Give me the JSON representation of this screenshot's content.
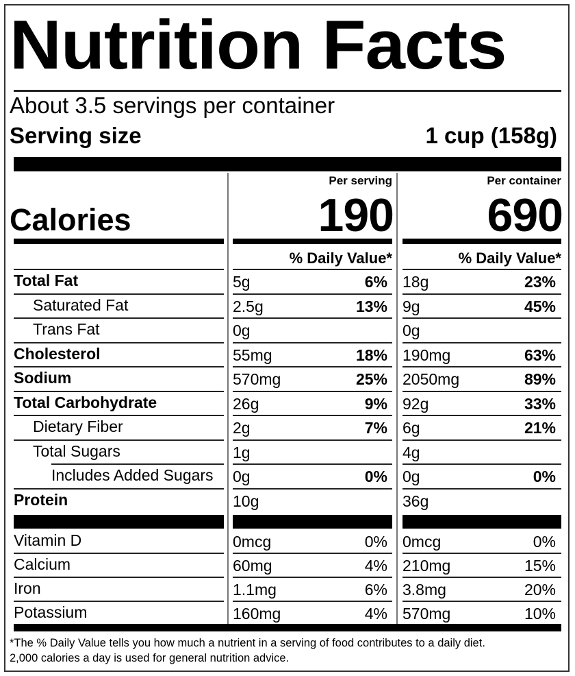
{
  "header": {
    "title": "Nutrition Facts",
    "servings_per_container": "About 3.5 servings per container",
    "serving_size_label": "Serving size",
    "serving_size_value": "1 cup (158g)"
  },
  "columns": [
    {
      "heading": "Per serving",
      "calories": "190",
      "dv_heading": "% Daily Value*"
    },
    {
      "heading": "Per container",
      "calories": "690",
      "dv_heading": "% Daily Value*"
    }
  ],
  "calories_label": "Calories",
  "nutrients": [
    {
      "label": "Total Fat",
      "bold": true,
      "indent": 0,
      "serving": {
        "amount": "5g",
        "dv": "6%"
      },
      "container": {
        "amount": "18g",
        "dv": "23%"
      }
    },
    {
      "label": "Saturated Fat",
      "bold": false,
      "indent": 1,
      "serving": {
        "amount": "2.5g",
        "dv": "13%"
      },
      "container": {
        "amount": "9g",
        "dv": "45%"
      }
    },
    {
      "label": "Trans Fat",
      "bold": false,
      "indent": 1,
      "serving": {
        "amount": "0g",
        "dv": ""
      },
      "container": {
        "amount": "0g",
        "dv": ""
      }
    },
    {
      "label": "Cholesterol",
      "bold": true,
      "indent": 0,
      "serving": {
        "amount": "55mg",
        "dv": "18%"
      },
      "container": {
        "amount": "190mg",
        "dv": "63%"
      }
    },
    {
      "label": "Sodium",
      "bold": true,
      "indent": 0,
      "serving": {
        "amount": "570mg",
        "dv": "25%"
      },
      "container": {
        "amount": "2050mg",
        "dv": "89%"
      }
    },
    {
      "label": "Total Carbohydrate",
      "bold": true,
      "indent": 0,
      "serving": {
        "amount": "26g",
        "dv": "9%"
      },
      "container": {
        "amount": "92g",
        "dv": "33%"
      }
    },
    {
      "label": "Dietary Fiber",
      "bold": false,
      "indent": 1,
      "serving": {
        "amount": "2g",
        "dv": "7%"
      },
      "container": {
        "amount": "6g",
        "dv": "21%"
      }
    },
    {
      "label": "Total Sugars",
      "bold": false,
      "indent": 1,
      "serving": {
        "amount": "1g",
        "dv": ""
      },
      "container": {
        "amount": "4g",
        "dv": ""
      }
    },
    {
      "label": "Includes Added Sugars",
      "bold": false,
      "indent": 2,
      "serving": {
        "amount": "0g",
        "dv": "0%"
      },
      "container": {
        "amount": "0g",
        "dv": "0%"
      }
    },
    {
      "label": "Protein",
      "bold": true,
      "indent": 0,
      "serving": {
        "amount": "10g",
        "dv": ""
      },
      "container": {
        "amount": "36g",
        "dv": ""
      }
    }
  ],
  "micronutrients": [
    {
      "label": "Vitamin D",
      "serving": {
        "amount": "0mcg",
        "dv": "0%"
      },
      "container": {
        "amount": "0mcg",
        "dv": "0%"
      }
    },
    {
      "label": "Calcium",
      "serving": {
        "amount": "60mg",
        "dv": "4%"
      },
      "container": {
        "amount": "210mg",
        "dv": "15%"
      }
    },
    {
      "label": "Iron",
      "serving": {
        "amount": "1.1mg",
        "dv": "6%"
      },
      "container": {
        "amount": "3.8mg",
        "dv": "20%"
      }
    },
    {
      "label": "Potassium",
      "serving": {
        "amount": "160mg",
        "dv": "4%"
      },
      "container": {
        "amount": "570mg",
        "dv": "10%"
      }
    }
  ],
  "footnote": {
    "line1": "*The % Daily Value tells you how much a nutrient in a serving of food contributes to a daily diet.",
    "line2": "2,000 calories a day is used for general nutrition advice."
  }
}
